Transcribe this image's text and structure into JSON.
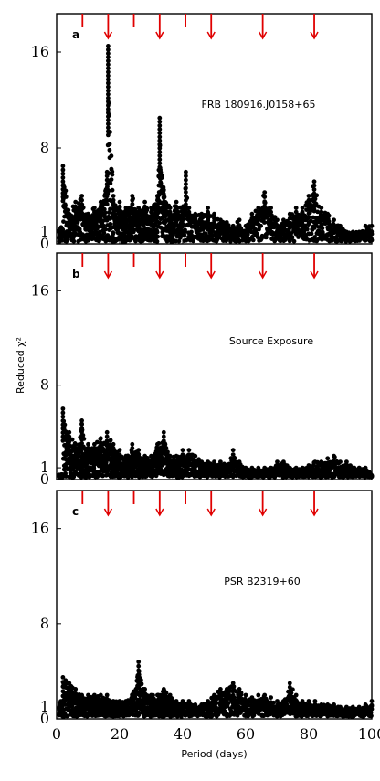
{
  "figure": {
    "xlabel": "Period (days)",
    "ylabel": "Reduced χ²",
    "xlim": [
      0,
      100
    ],
    "xticks": [
      "0",
      "20",
      "40",
      "60",
      "80",
      "100"
    ],
    "marker_periods": [
      8.2,
      16.35,
      24.5,
      32.7,
      40.9,
      49.05,
      65.4,
      81.75
    ],
    "colors": {
      "marker": "#e00000",
      "points": "#000000",
      "axes": "#000000"
    }
  },
  "chart_data": [
    {
      "type": "scatter",
      "panel": "a",
      "annotation": "FRB 180916.J0158+65",
      "xlabel": "Period (days)",
      "ylabel": "Reduced χ²",
      "xlim": [
        0,
        100
      ],
      "yticks": [
        "0",
        "1",
        "8",
        "16"
      ],
      "series": [
        {
          "x": [
            2,
            4,
            6,
            8,
            10,
            12,
            14,
            16,
            16.35,
            18,
            20,
            22,
            24,
            26,
            28,
            30,
            32,
            32.7,
            34,
            36,
            38,
            40,
            41,
            42,
            44,
            46,
            48,
            50,
            52,
            54,
            56,
            58,
            60,
            62,
            64,
            66,
            68,
            70,
            72,
            74,
            76,
            78,
            80,
            81.75,
            84,
            86,
            88,
            90,
            92,
            94,
            96,
            98,
            100
          ],
          "y": [
            6.5,
            2.5,
            3.5,
            4,
            2.5,
            3,
            3.5,
            6,
            16.5,
            4,
            3.5,
            3,
            4,
            3,
            3.5,
            3,
            4,
            10.5,
            4.5,
            3,
            3.5,
            3,
            6,
            3,
            2.5,
            2.5,
            3,
            2.5,
            2,
            1.8,
            1.5,
            2,
            1.5,
            2.5,
            3,
            4.3,
            3,
            2,
            2,
            2.5,
            3,
            3,
            4,
            5.2,
            3,
            2.5,
            2,
            1.5,
            1,
            1,
            1,
            1.5,
            1.5
          ]
        }
      ]
    },
    {
      "type": "scatter",
      "panel": "b",
      "annotation": "Source Exposure",
      "xlabel": "Period (days)",
      "ylabel": "Reduced χ²",
      "xlim": [
        0,
        100
      ],
      "yticks": [
        "0",
        "1",
        "8",
        "16"
      ],
      "series": [
        {
          "x": [
            2,
            4,
            6,
            8,
            10,
            12,
            14,
            16,
            18,
            20,
            22,
            24,
            26,
            28,
            30,
            32,
            34,
            36,
            38,
            40,
            42,
            44,
            46,
            48,
            50,
            52,
            54,
            56,
            58,
            60,
            62,
            64,
            66,
            68,
            70,
            72,
            74,
            76,
            78,
            80,
            82,
            84,
            86,
            88,
            90,
            92,
            94,
            96,
            98,
            100
          ],
          "y": [
            6,
            4,
            3,
            5,
            3,
            3,
            3.5,
            4,
            3,
            2.5,
            2,
            3,
            2.5,
            2,
            2,
            3,
            4,
            2,
            2,
            2.5,
            2.5,
            2,
            1.5,
            1.5,
            1.5,
            1.5,
            1.2,
            2.5,
            1.5,
            1,
            1,
            1,
            1,
            1,
            1.5,
            1.5,
            1,
            1,
            1,
            1.2,
            1.5,
            1.5,
            1.8,
            2,
            1.5,
            1.5,
            1,
            1,
            1,
            0.5
          ]
        }
      ]
    },
    {
      "type": "scatter",
      "panel": "c",
      "annotation": "PSR B2319+60",
      "xlabel": "Period (days)",
      "ylabel": "Reduced χ²",
      "xlim": [
        0,
        100
      ],
      "yticks": [
        "0",
        "1",
        "8",
        "16"
      ],
      "series": [
        {
          "x": [
            2,
            4,
            6,
            8,
            10,
            12,
            14,
            16,
            18,
            20,
            22,
            24,
            26,
            28,
            30,
            32,
            34,
            36,
            38,
            40,
            42,
            44,
            46,
            48,
            50,
            52,
            54,
            56,
            58,
            60,
            62,
            64,
            66,
            68,
            70,
            72,
            74,
            76,
            78,
            80,
            82,
            84,
            86,
            88,
            90,
            92,
            94,
            96,
            98,
            100
          ],
          "y": [
            3.5,
            3,
            2.5,
            2,
            2,
            2,
            2,
            2,
            1.5,
            1.5,
            1.5,
            2,
            4.8,
            2.5,
            2,
            2,
            2.5,
            2,
            1.5,
            1.5,
            1.5,
            1.2,
            1.2,
            1.5,
            2,
            2.5,
            2.5,
            3,
            2.5,
            2,
            1.8,
            2,
            2,
            1.8,
            1.5,
            1.5,
            3,
            2,
            1.5,
            1.5,
            1.5,
            1.2,
            1.2,
            1.2,
            1,
            1,
            1,
            1,
            1.2,
            1.5
          ]
        }
      ]
    }
  ]
}
